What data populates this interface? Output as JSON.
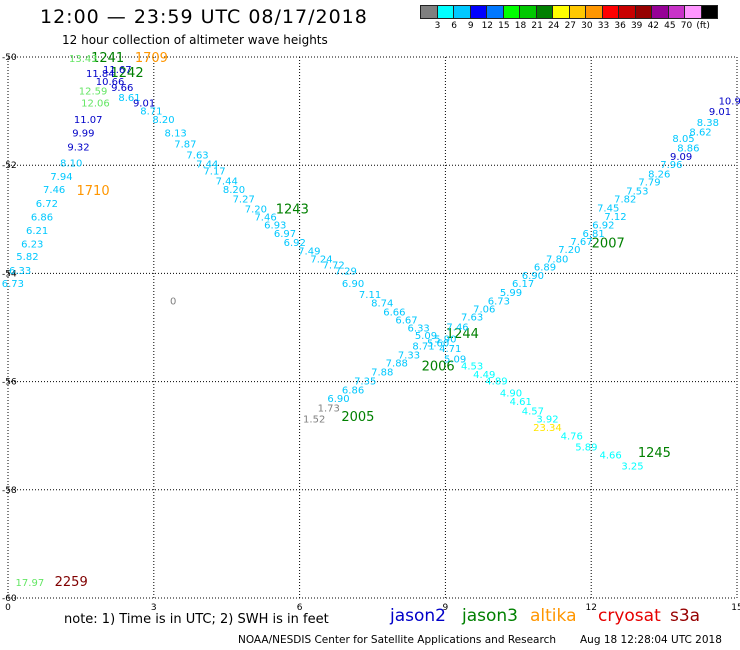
{
  "title": "12:00 — 23:59 UTC 08/17/2018",
  "subtitle": "12 hour collection of altimeter wave heights",
  "legend": {
    "colors": [
      "#808080",
      "#00ffff",
      "#00c8ff",
      "#0000ff",
      "#0078ff",
      "#00ff00",
      "#00c800",
      "#008000",
      "#ffff00",
      "#ffc800",
      "#ff9600",
      "#ff0000",
      "#c80000",
      "#960000",
      "#960096",
      "#c832c8",
      "#ff96ff",
      "#000000"
    ],
    "labels": [
      "3",
      "6",
      "9",
      "12",
      "15",
      "18",
      "21",
      "24",
      "27",
      "30",
      "33",
      "36",
      "39",
      "42",
      "45",
      "70",
      "(ft)"
    ]
  },
  "axes": {
    "x_ticks": [
      "0",
      "3",
      "6",
      "9",
      "12",
      "15"
    ],
    "y_ticks": [
      "-50",
      "-52",
      "-54",
      "-56",
      "-58",
      "-60"
    ]
  },
  "colors": {
    "light_cyan": "#00c8ff",
    "cyan": "#00ffff",
    "dark_blue": "#0000c8",
    "green": "#008000",
    "light_green": "#64e664",
    "orange": "#ff9600",
    "yellow": "#ffe600",
    "gray": "#808080",
    "maroon": "#800000"
  },
  "map_labels": [
    {
      "t": "1709",
      "lon": 2.95,
      "lat": -50.02,
      "c": "orange",
      "big": 1
    },
    {
      "t": "1241",
      "lon": 2.05,
      "lat": -50.02,
      "c": "green",
      "big": 1
    },
    {
      "t": "1242",
      "lon": 2.45,
      "lat": -50.3,
      "c": "green",
      "big": 1
    },
    {
      "t": "1710",
      "lon": 1.75,
      "lat": -52.48,
      "c": "orange",
      "big": 1
    },
    {
      "t": "1243",
      "lon": 5.85,
      "lat": -52.82,
      "c": "green",
      "big": 1
    },
    {
      "t": "2007",
      "lon": 12.35,
      "lat": -53.45,
      "c": "green",
      "big": 1
    },
    {
      "t": "1244",
      "lon": 9.35,
      "lat": -55.12,
      "c": "green",
      "big": 1
    },
    {
      "t": "2006",
      "lon": 8.85,
      "lat": -55.72,
      "c": "green",
      "big": 1
    },
    {
      "t": "2005",
      "lon": 7.2,
      "lat": -56.65,
      "c": "green",
      "big": 1
    },
    {
      "t": "1245",
      "lon": 13.3,
      "lat": -57.32,
      "c": "green",
      "big": 1
    },
    {
      "t": "2259",
      "lon": 1.3,
      "lat": -59.7,
      "c": "maroon",
      "big": 1
    },
    {
      "t": "17.97",
      "lon": 0.45,
      "lat": -59.7,
      "c": "light_green",
      "big": 0
    },
    {
      "t": "0",
      "lon": 3.4,
      "lat": -54.5,
      "c": "gray",
      "big": 0
    },
    {
      "t": "13.43",
      "lon": 1.55,
      "lat": -50.02,
      "c": "light_green",
      "big": 0
    },
    {
      "t": "11.84",
      "lon": 1.9,
      "lat": -50.3,
      "c": "dark_blue",
      "big": 0
    },
    {
      "t": "11.67",
      "lon": 2.25,
      "lat": -50.22,
      "c": "dark_blue",
      "big": 0
    },
    {
      "t": "10.66",
      "lon": 2.1,
      "lat": -50.44,
      "c": "dark_blue",
      "big": 0
    },
    {
      "t": "9.66",
      "lon": 2.35,
      "lat": -50.55,
      "c": "dark_blue",
      "big": 0
    },
    {
      "t": "12.59",
      "lon": 1.75,
      "lat": -50.62,
      "c": "light_green",
      "big": 0
    },
    {
      "t": "8.61",
      "lon": 2.5,
      "lat": -50.74,
      "c": "light_cyan",
      "big": 0
    },
    {
      "t": "12.06",
      "lon": 1.8,
      "lat": -50.84,
      "c": "light_green",
      "big": 0
    },
    {
      "t": "9.01",
      "lon": 2.8,
      "lat": -50.84,
      "c": "dark_blue",
      "big": 0
    },
    {
      "t": "8.71",
      "lon": 2.95,
      "lat": -50.99,
      "c": "light_cyan",
      "big": 0
    },
    {
      "t": "11.07",
      "lon": 1.65,
      "lat": -51.15,
      "c": "dark_blue",
      "big": 0
    },
    {
      "t": "8.20",
      "lon": 3.2,
      "lat": -51.15,
      "c": "light_cyan",
      "big": 0
    },
    {
      "t": "9.99",
      "lon": 1.55,
      "lat": -51.4,
      "c": "dark_blue",
      "big": 0
    },
    {
      "t": "8.13",
      "lon": 3.45,
      "lat": -51.4,
      "c": "light_cyan",
      "big": 0
    },
    {
      "t": "7.87",
      "lon": 3.65,
      "lat": -51.6,
      "c": "light_cyan",
      "big": 0
    },
    {
      "t": "9.32",
      "lon": 1.45,
      "lat": -51.65,
      "c": "dark_blue",
      "big": 0
    },
    {
      "t": "7.63",
      "lon": 3.9,
      "lat": -51.8,
      "c": "light_cyan",
      "big": 0
    },
    {
      "t": "8.10",
      "lon": 1.3,
      "lat": -51.95,
      "c": "light_cyan",
      "big": 0
    },
    {
      "t": "7.44",
      "lon": 4.1,
      "lat": -51.97,
      "c": "light_cyan",
      "big": 0
    },
    {
      "t": "7.17",
      "lon": 4.25,
      "lat": -52.1,
      "c": "light_cyan",
      "big": 0
    },
    {
      "t": "7.94",
      "lon": 1.1,
      "lat": -52.2,
      "c": "light_cyan",
      "big": 0
    },
    {
      "t": "7.44",
      "lon": 4.5,
      "lat": -52.28,
      "c": "light_cyan",
      "big": 0
    },
    {
      "t": "8.20",
      "lon": 4.65,
      "lat": -52.44,
      "c": "light_cyan",
      "big": 0
    },
    {
      "t": "7.46",
      "lon": 0.95,
      "lat": -52.44,
      "c": "light_cyan",
      "big": 0
    },
    {
      "t": "7.27",
      "lon": 4.85,
      "lat": -52.62,
      "c": "light_cyan",
      "big": 0
    },
    {
      "t": "6.72",
      "lon": 0.8,
      "lat": -52.7,
      "c": "light_cyan",
      "big": 0
    },
    {
      "t": "7.20",
      "lon": 5.1,
      "lat": -52.8,
      "c": "light_cyan",
      "big": 0
    },
    {
      "t": "7.46",
      "lon": 5.3,
      "lat": -52.95,
      "c": "light_cyan",
      "big": 0
    },
    {
      "t": "6.86",
      "lon": 0.7,
      "lat": -52.95,
      "c": "light_cyan",
      "big": 0
    },
    {
      "t": "6.93",
      "lon": 5.5,
      "lat": -53.1,
      "c": "light_cyan",
      "big": 0
    },
    {
      "t": "6.21",
      "lon": 0.6,
      "lat": -53.2,
      "c": "light_cyan",
      "big": 0
    },
    {
      "t": "6.97",
      "lon": 5.7,
      "lat": -53.25,
      "c": "light_cyan",
      "big": 0
    },
    {
      "t": "6.23",
      "lon": 0.5,
      "lat": -53.45,
      "c": "light_cyan",
      "big": 0
    },
    {
      "t": "6.92",
      "lon": 5.9,
      "lat": -53.42,
      "c": "light_cyan",
      "big": 0
    },
    {
      "t": "7.49",
      "lon": 6.2,
      "lat": -53.58,
      "c": "light_cyan",
      "big": 0
    },
    {
      "t": "5.82",
      "lon": 0.4,
      "lat": -53.68,
      "c": "light_cyan",
      "big": 0
    },
    {
      "t": "7.24",
      "lon": 6.45,
      "lat": -53.72,
      "c": "light_cyan",
      "big": 0
    },
    {
      "t": "7.72",
      "lon": 6.7,
      "lat": -53.84,
      "c": "light_cyan",
      "big": 0
    },
    {
      "t": "6.33",
      "lon": 0.25,
      "lat": -53.94,
      "c": "light_cyan",
      "big": 0
    },
    {
      "t": "7.29",
      "lon": 6.95,
      "lat": -53.95,
      "c": "light_cyan",
      "big": 0
    },
    {
      "t": "6.73",
      "lon": 0.1,
      "lat": -54.18,
      "c": "light_cyan",
      "big": 0
    },
    {
      "t": "6.90",
      "lon": 7.1,
      "lat": -54.18,
      "c": "light_cyan",
      "big": 0
    },
    {
      "t": "7.11",
      "lon": 7.45,
      "lat": -54.38,
      "c": "light_cyan",
      "big": 0
    },
    {
      "t": "8.74",
      "lon": 7.7,
      "lat": -54.54,
      "c": "light_cyan",
      "big": 0
    },
    {
      "t": "6.66",
      "lon": 7.95,
      "lat": -54.7,
      "c": "light_cyan",
      "big": 0
    },
    {
      "t": "6.67",
      "lon": 8.2,
      "lat": -54.85,
      "c": "light_cyan",
      "big": 0
    },
    {
      "t": "6.33",
      "lon": 8.45,
      "lat": -55.0,
      "c": "light_cyan",
      "big": 0
    },
    {
      "t": "5.09",
      "lon": 8.6,
      "lat": -55.14,
      "c": "light_cyan",
      "big": 0
    },
    {
      "t": "5.60",
      "lon": 8.85,
      "lat": -55.28,
      "c": "light_cyan",
      "big": 0
    },
    {
      "t": "4.71",
      "lon": 9.1,
      "lat": -55.38,
      "c": "light_cyan",
      "big": 0
    },
    {
      "t": "5.09",
      "lon": 9.2,
      "lat": -55.57,
      "c": "light_cyan",
      "big": 0
    },
    {
      "t": "4.53",
      "lon": 9.55,
      "lat": -55.7,
      "c": "cyan",
      "big": 0
    },
    {
      "t": "4.49",
      "lon": 9.8,
      "lat": -55.86,
      "c": "cyan",
      "big": 0
    },
    {
      "t": "4.89",
      "lon": 10.05,
      "lat": -55.98,
      "c": "cyan",
      "big": 0
    },
    {
      "t": "4.90",
      "lon": 10.35,
      "lat": -56.2,
      "c": "cyan",
      "big": 0
    },
    {
      "t": "4.61",
      "lon": 10.55,
      "lat": -56.36,
      "c": "cyan",
      "big": 0
    },
    {
      "t": "4.57",
      "lon": 10.8,
      "lat": -56.53,
      "c": "cyan",
      "big": 0
    },
    {
      "t": "3.92",
      "lon": 11.1,
      "lat": -56.68,
      "c": "cyan",
      "big": 0
    },
    {
      "t": "23.34",
      "lon": 11.1,
      "lat": -56.84,
      "c": "yellow",
      "big": 0
    },
    {
      "t": "4.76",
      "lon": 11.6,
      "lat": -57.0,
      "c": "cyan",
      "big": 0
    },
    {
      "t": "5.89",
      "lon": 11.9,
      "lat": -57.2,
      "c": "cyan",
      "big": 0
    },
    {
      "t": "4.66",
      "lon": 12.4,
      "lat": -57.35,
      "c": "cyan",
      "big": 0
    },
    {
      "t": "3.25",
      "lon": 12.85,
      "lat": -57.55,
      "c": "cyan",
      "big": 0
    },
    {
      "t": "1.73",
      "lon": 6.6,
      "lat": -56.48,
      "c": "gray",
      "big": 0
    },
    {
      "t": "1.52",
      "lon": 6.3,
      "lat": -56.68,
      "c": "gray",
      "big": 0
    },
    {
      "t": "6.90",
      "lon": 6.8,
      "lat": -56.3,
      "c": "light_cyan",
      "big": 0
    },
    {
      "t": "6.86",
      "lon": 7.1,
      "lat": -56.15,
      "c": "light_cyan",
      "big": 0
    },
    {
      "t": "7.35",
      "lon": 7.35,
      "lat": -55.98,
      "c": "light_cyan",
      "big": 0
    },
    {
      "t": "7.88",
      "lon": 7.7,
      "lat": -55.81,
      "c": "light_cyan",
      "big": 0
    },
    {
      "t": "7.88",
      "lon": 8.0,
      "lat": -55.65,
      "c": "light_cyan",
      "big": 0
    },
    {
      "t": "7.33",
      "lon": 8.25,
      "lat": -55.5,
      "c": "light_cyan",
      "big": 0
    },
    {
      "t": "8.71",
      "lon": 8.55,
      "lat": -55.33,
      "c": "light_cyan",
      "big": 0
    },
    {
      "t": "5.90",
      "lon": 9.0,
      "lat": -55.2,
      "c": "light_cyan",
      "big": 0
    },
    {
      "t": "7.46",
      "lon": 9.25,
      "lat": -54.98,
      "c": "light_cyan",
      "big": 0
    },
    {
      "t": "7.63",
      "lon": 9.55,
      "lat": -54.8,
      "c": "light_cyan",
      "big": 0
    },
    {
      "t": "7.06",
      "lon": 9.8,
      "lat": -54.65,
      "c": "light_cyan",
      "big": 0
    },
    {
      "t": "6.73",
      "lon": 10.1,
      "lat": -54.5,
      "c": "light_cyan",
      "big": 0
    },
    {
      "t": "5.99",
      "lon": 10.35,
      "lat": -54.34,
      "c": "light_cyan",
      "big": 0
    },
    {
      "t": "6.17",
      "lon": 10.6,
      "lat": -54.18,
      "c": "light_cyan",
      "big": 0
    },
    {
      "t": "6.90",
      "lon": 10.8,
      "lat": -54.03,
      "c": "light_cyan",
      "big": 0
    },
    {
      "t": "6.89",
      "lon": 11.05,
      "lat": -53.87,
      "c": "light_cyan",
      "big": 0
    },
    {
      "t": "7.80",
      "lon": 11.3,
      "lat": -53.72,
      "c": "light_cyan",
      "big": 0
    },
    {
      "t": "7.20",
      "lon": 11.55,
      "lat": -53.55,
      "c": "light_cyan",
      "big": 0
    },
    {
      "t": "7.67",
      "lon": 11.8,
      "lat": -53.4,
      "c": "light_cyan",
      "big": 0
    },
    {
      "t": "6.81",
      "lon": 12.05,
      "lat": -53.25,
      "c": "light_cyan",
      "big": 0
    },
    {
      "t": "6.92",
      "lon": 12.25,
      "lat": -53.1,
      "c": "light_cyan",
      "big": 0
    },
    {
      "t": "7.12",
      "lon": 12.5,
      "lat": -52.94,
      "c": "light_cyan",
      "big": 0
    },
    {
      "t": "7.45",
      "lon": 12.35,
      "lat": -52.78,
      "c": "light_cyan",
      "big": 0
    },
    {
      "t": "7.82",
      "lon": 12.7,
      "lat": -52.62,
      "c": "light_cyan",
      "big": 0
    },
    {
      "t": "7.53",
      "lon": 12.95,
      "lat": -52.47,
      "c": "light_cyan",
      "big": 0
    },
    {
      "t": "7.79",
      "lon": 13.2,
      "lat": -52.3,
      "c": "light_cyan",
      "big": 0
    },
    {
      "t": "8.26",
      "lon": 13.4,
      "lat": -52.15,
      "c": "light_cyan",
      "big": 0
    },
    {
      "t": "7.96",
      "lon": 13.65,
      "lat": -51.98,
      "c": "light_cyan",
      "big": 0
    },
    {
      "t": "9.09",
      "lon": 13.85,
      "lat": -51.83,
      "c": "dark_blue",
      "big": 0
    },
    {
      "t": "8.86",
      "lon": 14.0,
      "lat": -51.67,
      "c": "light_cyan",
      "big": 0
    },
    {
      "t": "8.05",
      "lon": 13.9,
      "lat": -51.5,
      "c": "light_cyan",
      "big": 0
    },
    {
      "t": "8.62",
      "lon": 14.25,
      "lat": -51.38,
      "c": "light_cyan",
      "big": 0
    },
    {
      "t": "8.38",
      "lon": 14.4,
      "lat": -51.2,
      "c": "light_cyan",
      "big": 0
    },
    {
      "t": "9.01",
      "lon": 14.65,
      "lat": -51.0,
      "c": "dark_blue",
      "big": 0
    },
    {
      "t": "10.9",
      "lon": 14.85,
      "lat": -50.8,
      "c": "dark_blue",
      "big": 0
    }
  ],
  "footer": {
    "note": "note:  1) Time is in UTC;  2) SWH is in feet",
    "satellites": [
      {
        "name": "jason2",
        "color": "#0000c8"
      },
      {
        "name": "jason3",
        "color": "#008000"
      },
      {
        "name": "altika",
        "color": "#ff9600"
      },
      {
        "name": "cryosat",
        "color": "#e60000"
      },
      {
        "name": "s3a",
        "color": "#960000"
      }
    ],
    "credit": "NOAA/NESDIS Center for Satellite Applications and Research",
    "timestamp": "Aug 18 12:28:04 UTC 2018"
  }
}
